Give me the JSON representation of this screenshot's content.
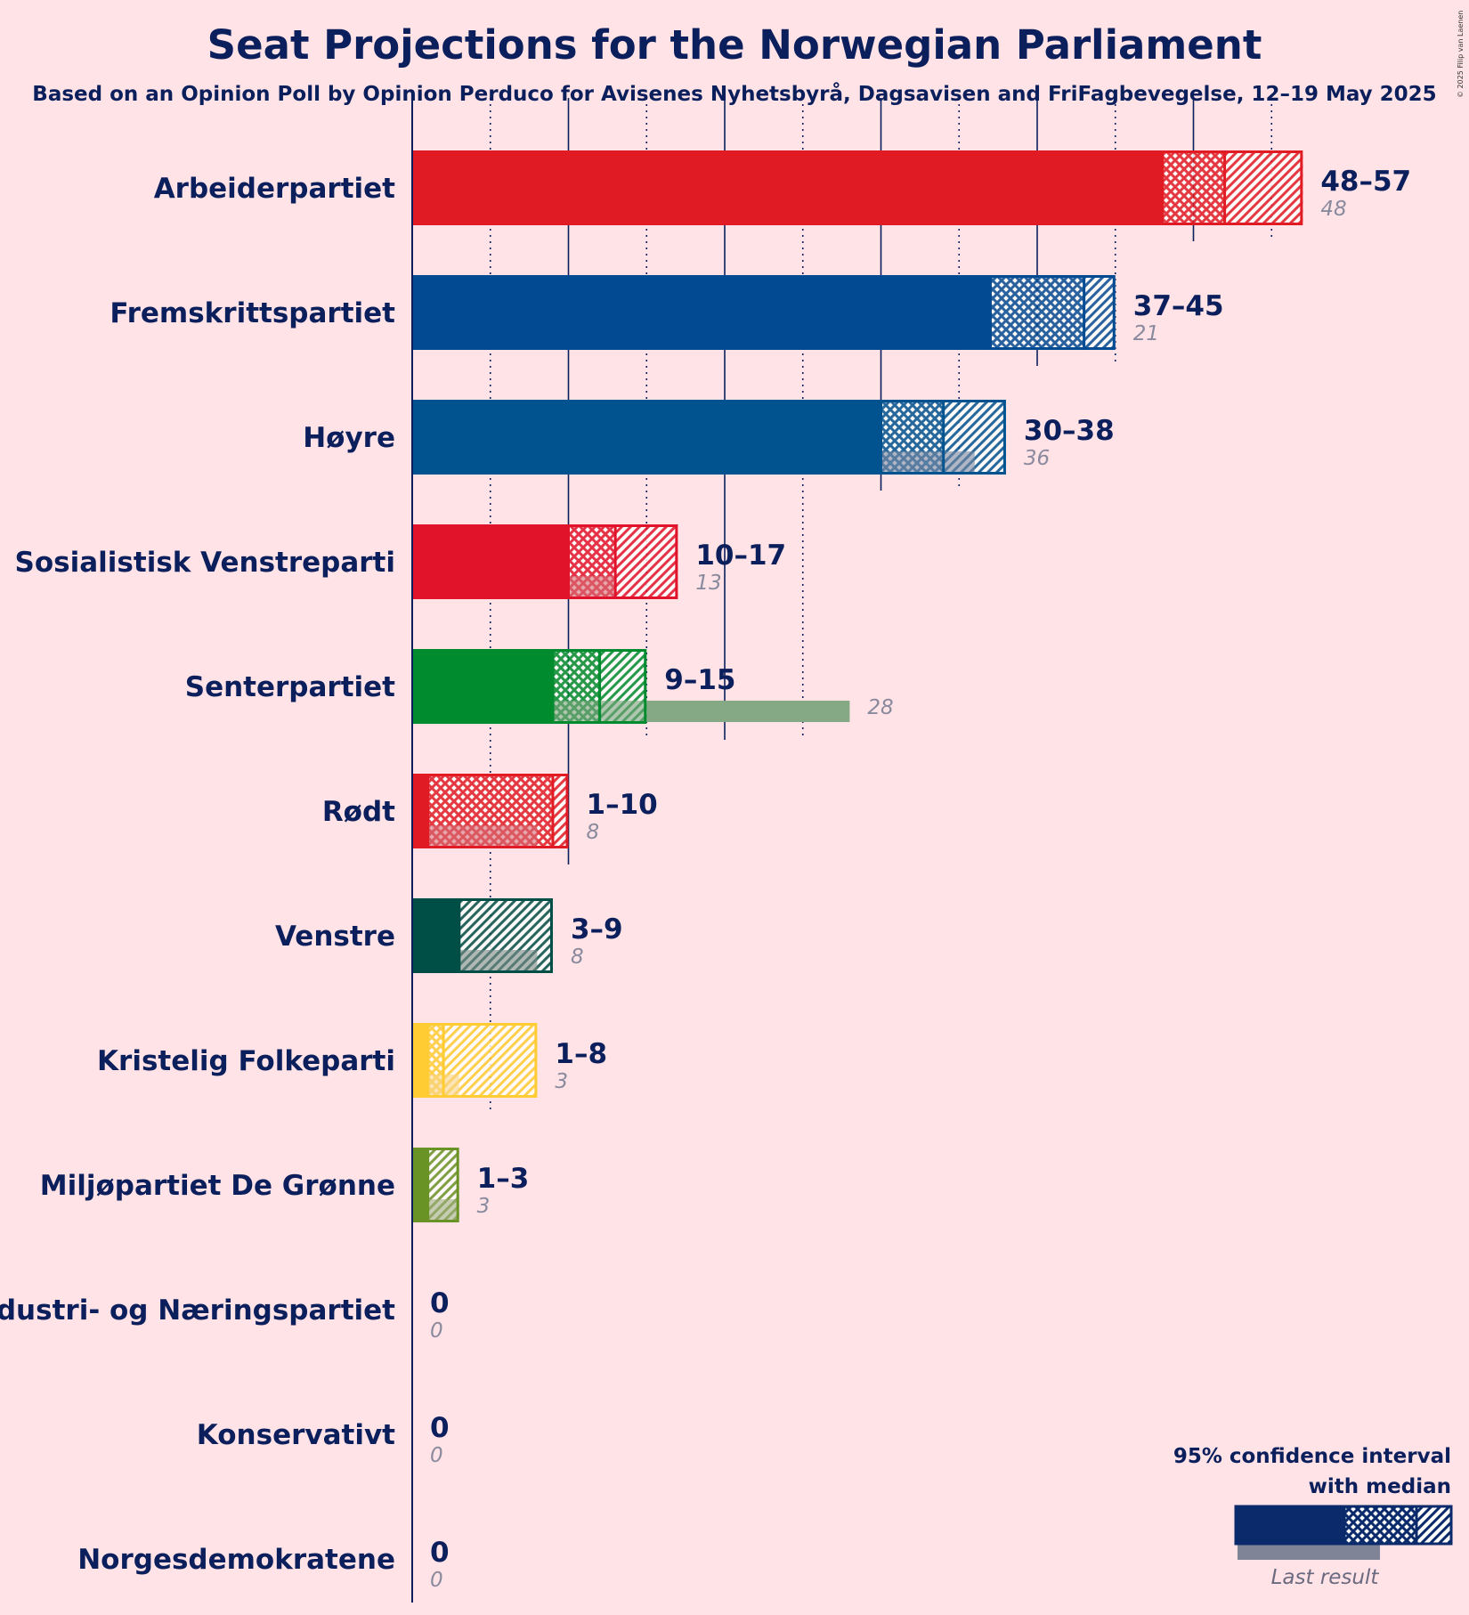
{
  "title": "Seat Projections for the Norwegian Parliament",
  "subtitle": "Based on an Opinion Poll by Opinion Perduco for Avisenes Nyhetsbyrå, Dagsavisen and FriFagbevegelse, 12–19 May 2025",
  "copyright": "© 2025 Filip van Laenen",
  "legend": {
    "line1": "95% confidence interval",
    "line2": "with median",
    "last_result": "Last result",
    "color": "#0B2A6B",
    "last_color": "#7F8496"
  },
  "chart_data": {
    "type": "bar",
    "orientation": "horizontal",
    "title": "Seat Projections for the Norwegian Parliament",
    "xlim": [
      0,
      60
    ],
    "grid_solid": [
      10,
      20,
      30,
      40,
      50
    ],
    "grid_dotted": [
      5,
      15,
      25,
      35,
      45,
      55
    ],
    "series": [
      {
        "party": "Arbeiderpartiet",
        "color": "#E01B24",
        "lastColor": "#D97880",
        "low": 48,
        "median": 52,
        "high": 57,
        "range_label": "48–57",
        "last": 48,
        "last_label": "48"
      },
      {
        "party": "Fremskrittspartiet",
        "color": "#024A91",
        "lastColor": "#8590A8",
        "low": 37,
        "median": 43,
        "high": 45,
        "range_label": "37–45",
        "last": 21,
        "last_label": "21"
      },
      {
        "party": "Høyre",
        "color": "#00538F",
        "lastColor": "#8591A8",
        "low": 30,
        "median": 34,
        "high": 38,
        "range_label": "30–38",
        "last": 36,
        "last_label": "36"
      },
      {
        "party": "Sosialistisk Venstreparti",
        "color": "#E1132B",
        "lastColor": "#D97880",
        "low": 10,
        "median": 13,
        "high": 17,
        "range_label": "10–17",
        "last": 13,
        "last_label": "13"
      },
      {
        "party": "Senterpartiet",
        "color": "#008C2E",
        "lastColor": "#85A885",
        "low": 9,
        "median": 12,
        "high": 15,
        "range_label": "9–15",
        "last": 28,
        "last_label": "28"
      },
      {
        "party": "Rødt",
        "color": "#E01B24",
        "lastColor": "#D97880",
        "low": 1,
        "median": 9,
        "high": 10,
        "range_label": "1–10",
        "last": 8,
        "last_label": "8"
      },
      {
        "party": "Venstre",
        "color": "#004F46",
        "lastColor": "#86928E",
        "low": 3,
        "median": 3,
        "high": 9,
        "range_label": "3–9",
        "last": 8,
        "last_label": "8"
      },
      {
        "party": "Kristelig Folkeparti",
        "color": "#FFCC33",
        "lastColor": "#F8D690",
        "low": 1,
        "median": 2,
        "high": 8,
        "range_label": "1–8",
        "last": 3,
        "last_label": "3"
      },
      {
        "party": "Miljøpartiet De Grønne",
        "color": "#6A9325",
        "lastColor": "#A8B28A",
        "low": 1,
        "median": 1,
        "high": 3,
        "range_label": "1–3",
        "last": 3,
        "last_label": "3"
      },
      {
        "party": "Industri- og Næringspartiet",
        "color": "#00375E",
        "lastColor": "#8590A8",
        "low": 0,
        "median": 0,
        "high": 0,
        "range_label": "0",
        "last": 0,
        "last_label": "0"
      },
      {
        "party": "Konservativt",
        "color": "#00375E",
        "lastColor": "#8590A8",
        "low": 0,
        "median": 0,
        "high": 0,
        "range_label": "0",
        "last": 0,
        "last_label": "0"
      },
      {
        "party": "Norgesdemokratene",
        "color": "#00375E",
        "lastColor": "#8590A8",
        "low": 0,
        "median": 0,
        "high": 0,
        "range_label": "0",
        "last": 0,
        "last_label": "0"
      }
    ]
  }
}
